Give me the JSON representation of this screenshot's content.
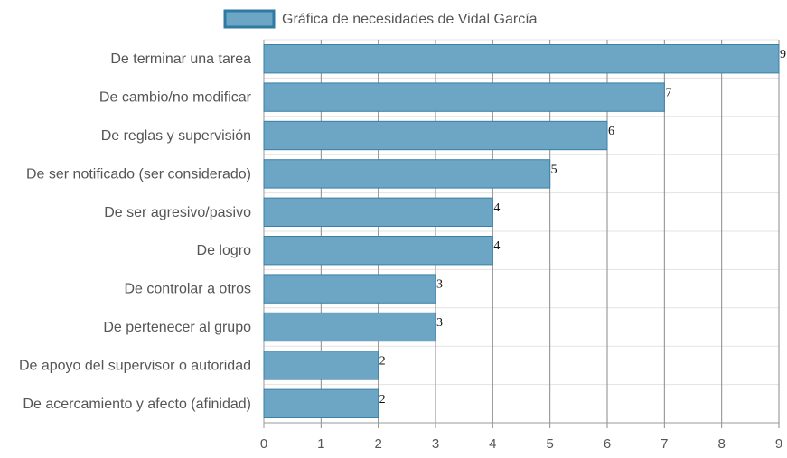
{
  "chart_data": {
    "type": "bar",
    "orientation": "horizontal",
    "title": "",
    "xlabel": "",
    "ylabel": "",
    "categories": [
      "De terminar una tarea",
      "De cambio/no modificar",
      "De reglas y supervisión",
      "De ser notificado (ser considerado)",
      "De ser agresivo/pasivo",
      "De logro",
      "De controlar a otros",
      "De pertenecer al grupo",
      "De apoyo del supervisor o autoridad",
      "De acercamiento y afecto (afinidad)"
    ],
    "series": [
      {
        "name": "Gráfica de necesidades de Vidal García",
        "values": [
          9,
          7,
          6,
          5,
          4,
          4,
          3,
          3,
          2,
          2
        ],
        "color": "#6ca6c4",
        "border_color": "#3a7fa6"
      }
    ],
    "xlim": [
      0,
      9
    ],
    "ticks": [
      "0",
      "1",
      "2",
      "3",
      "4",
      "5",
      "6",
      "7",
      "8",
      "9"
    ],
    "grid": true,
    "legend": "top-center",
    "data_labels": true
  }
}
